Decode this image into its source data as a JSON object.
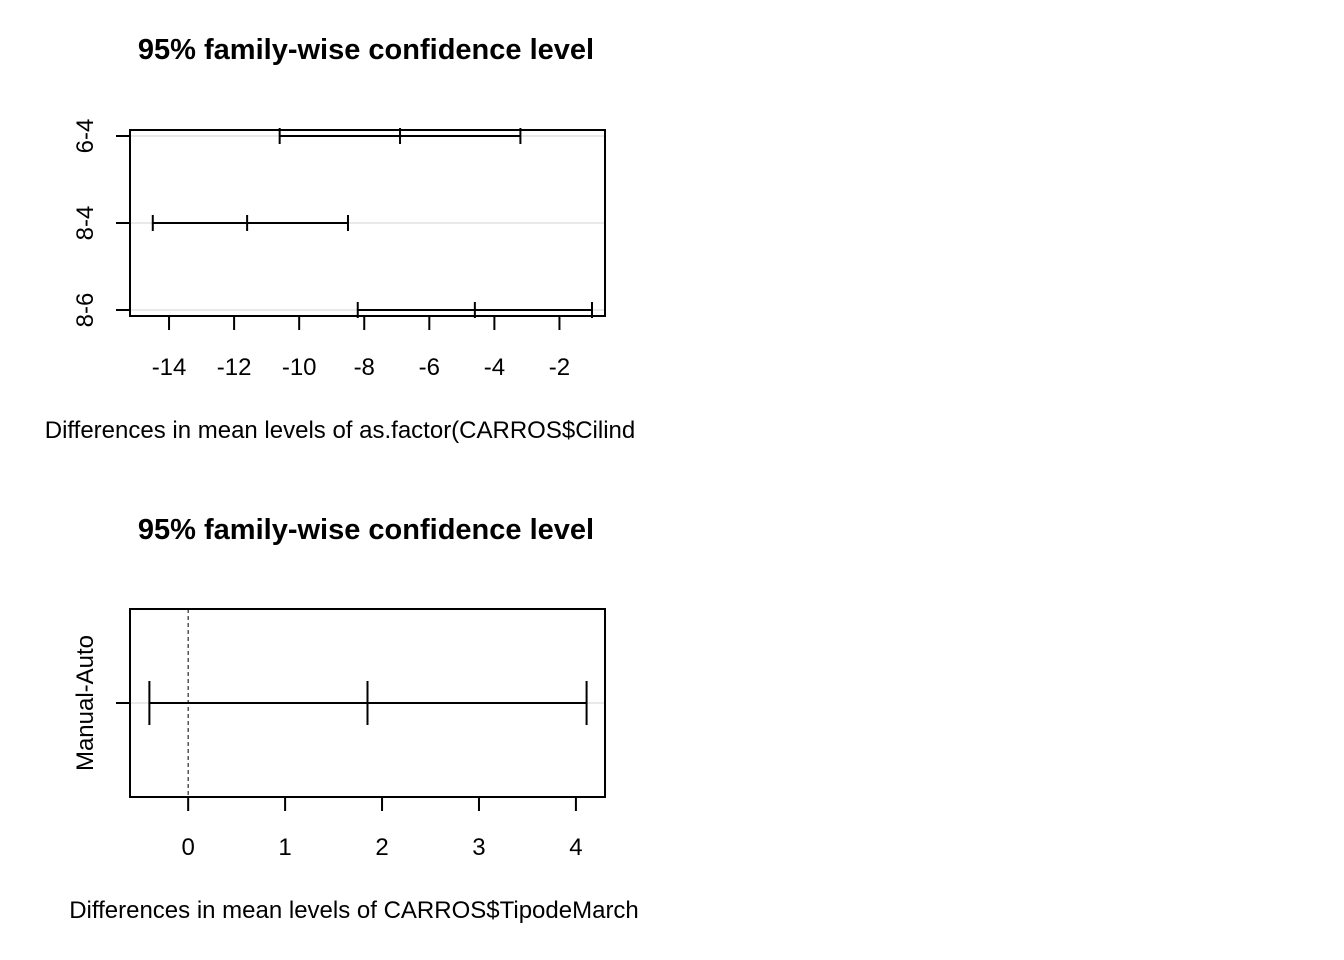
{
  "chart_data": [
    {
      "type": "errorbar",
      "title": "95% family-wise confidence level",
      "xlabel": "Differences in mean levels of as.factor(CARROS$Cilind",
      "categories": [
        "6-4",
        "8-4",
        "8-6"
      ],
      "series": [
        {
          "lower": [
            -10.6,
            -14.5,
            -8.2
          ],
          "estimate": [
            -6.9,
            -11.6,
            -4.6
          ],
          "upper": [
            -3.2,
            -8.5,
            -1.0
          ]
        }
      ],
      "xlim": [
        -15.2,
        -0.6
      ],
      "xticks": [
        -14,
        -12,
        -10,
        -8,
        -6,
        -4,
        -2
      ],
      "xtick_labels": [
        "-14",
        "-12",
        "-10",
        "-8",
        "-6",
        "-4",
        "-2"
      ],
      "zero_line": false,
      "grid": true
    },
    {
      "type": "errorbar",
      "title": "95% family-wise confidence level",
      "xlabel": "Differences in mean levels of CARROS$TipodeMarch",
      "categories": [
        "Manual-Auto"
      ],
      "series": [
        {
          "lower": [
            -0.4
          ],
          "estimate": [
            1.85
          ],
          "upper": [
            4.11
          ]
        }
      ],
      "xlim": [
        -0.6,
        4.3
      ],
      "xticks": [
        0,
        1,
        2,
        3,
        4
      ],
      "xtick_labels": [
        "0",
        "1",
        "2",
        "3",
        "4"
      ],
      "zero_line": true,
      "grid": true
    }
  ]
}
